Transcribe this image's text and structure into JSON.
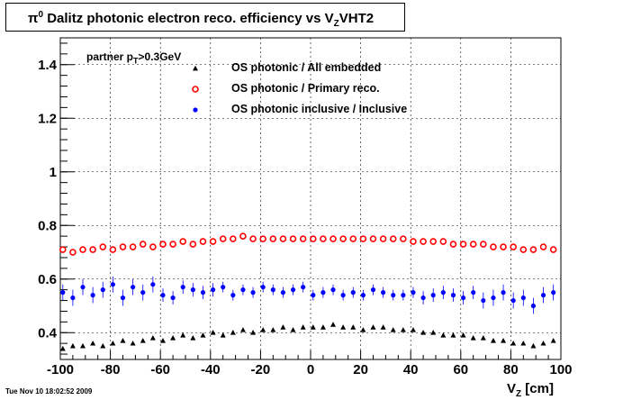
{
  "title": {
    "prefix": "π",
    "prefix_sup": "0",
    "main": " Dalitz photonic electron reco. efficiency vs ",
    "var": "V",
    "var_sub": "Z",
    "suffix": "VHT2"
  },
  "annotation": {
    "prefix": "partner p",
    "sub": "T",
    "suffix": ">0.3GeV"
  },
  "x_axis_title": {
    "main": "V",
    "sub": "Z",
    "unit": " [cm]"
  },
  "timestamp": "Tue Nov 10 18:02:52 2009",
  "chart_data": {
    "type": "scatter",
    "xlim": [
      -100,
      100
    ],
    "ylim": [
      0.3,
      1.5
    ],
    "x_ticks": [
      -100,
      -80,
      -60,
      -40,
      -20,
      0,
      20,
      40,
      60,
      80,
      100
    ],
    "x_tick_labels": [
      "-100",
      "-80",
      "-60",
      "-40",
      "-20",
      "0",
      "20",
      "40",
      "60",
      "80",
      "100"
    ],
    "y_ticks": [
      0.4,
      0.6,
      0.8,
      1.0,
      1.2,
      1.4
    ],
    "y_tick_labels": [
      "0.4",
      "0.6",
      "0.8",
      "1",
      "1.2",
      "1.4"
    ],
    "grid": true,
    "legend_position": "top-left",
    "x": [
      -99,
      -95,
      -91,
      -87,
      -83,
      -79,
      -75,
      -71,
      -67,
      -63,
      -59,
      -55,
      -51,
      -47,
      -43,
      -39,
      -35,
      -31,
      -27,
      -23,
      -19,
      -15,
      -11,
      -7,
      -3,
      1,
      5,
      9,
      13,
      17,
      21,
      25,
      29,
      33,
      37,
      41,
      45,
      49,
      53,
      57,
      61,
      65,
      69,
      73,
      77,
      81,
      85,
      89,
      93,
      97
    ],
    "series": [
      {
        "name": "OS photonic / All embedded",
        "marker": "triangle",
        "color": "#000000",
        "values": [
          0.34,
          0.35,
          0.35,
          0.36,
          0.35,
          0.36,
          0.37,
          0.36,
          0.37,
          0.38,
          0.37,
          0.38,
          0.39,
          0.38,
          0.39,
          0.4,
          0.39,
          0.4,
          0.41,
          0.4,
          0.41,
          0.41,
          0.42,
          0.41,
          0.42,
          0.42,
          0.42,
          0.43,
          0.42,
          0.42,
          0.41,
          0.42,
          0.42,
          0.41,
          0.41,
          0.41,
          0.4,
          0.4,
          0.39,
          0.39,
          0.39,
          0.38,
          0.38,
          0.37,
          0.37,
          0.36,
          0.36,
          0.35,
          0.36,
          0.37
        ],
        "errors": []
      },
      {
        "name": "OS photonic / Primary reco.",
        "marker": "open-circle",
        "color": "#ff0000",
        "values": [
          0.71,
          0.7,
          0.71,
          0.71,
          0.72,
          0.71,
          0.72,
          0.72,
          0.73,
          0.72,
          0.73,
          0.73,
          0.74,
          0.73,
          0.74,
          0.74,
          0.75,
          0.75,
          0.76,
          0.75,
          0.75,
          0.75,
          0.75,
          0.75,
          0.75,
          0.75,
          0.75,
          0.75,
          0.75,
          0.75,
          0.75,
          0.75,
          0.75,
          0.75,
          0.75,
          0.74,
          0.74,
          0.74,
          0.74,
          0.73,
          0.73,
          0.73,
          0.73,
          0.72,
          0.72,
          0.72,
          0.71,
          0.71,
          0.72,
          0.71
        ],
        "errors": []
      },
      {
        "name": "OS photonic inclusive / Inclusive",
        "marker": "filled-circle",
        "color": "#0000ff",
        "values": [
          0.55,
          0.53,
          0.57,
          0.54,
          0.56,
          0.58,
          0.53,
          0.57,
          0.55,
          0.58,
          0.54,
          0.53,
          0.57,
          0.56,
          0.55,
          0.56,
          0.57,
          0.54,
          0.56,
          0.55,
          0.57,
          0.56,
          0.55,
          0.56,
          0.57,
          0.54,
          0.55,
          0.56,
          0.54,
          0.55,
          0.54,
          0.56,
          0.55,
          0.54,
          0.54,
          0.55,
          0.53,
          0.54,
          0.55,
          0.54,
          0.53,
          0.55,
          0.52,
          0.53,
          0.55,
          0.52,
          0.53,
          0.5,
          0.54,
          0.55
        ],
        "errors": [
          0.03,
          0.03,
          0.03,
          0.03,
          0.03,
          0.03,
          0.03,
          0.03,
          0.03,
          0.03,
          0.025,
          0.025,
          0.025,
          0.025,
          0.025,
          0.025,
          0.02,
          0.02,
          0.02,
          0.02,
          0.02,
          0.02,
          0.02,
          0.02,
          0.02,
          0.02,
          0.02,
          0.02,
          0.02,
          0.02,
          0.02,
          0.02,
          0.02,
          0.02,
          0.02,
          0.02,
          0.025,
          0.025,
          0.025,
          0.025,
          0.025,
          0.025,
          0.03,
          0.03,
          0.03,
          0.03,
          0.03,
          0.03,
          0.03,
          0.03
        ]
      }
    ]
  }
}
